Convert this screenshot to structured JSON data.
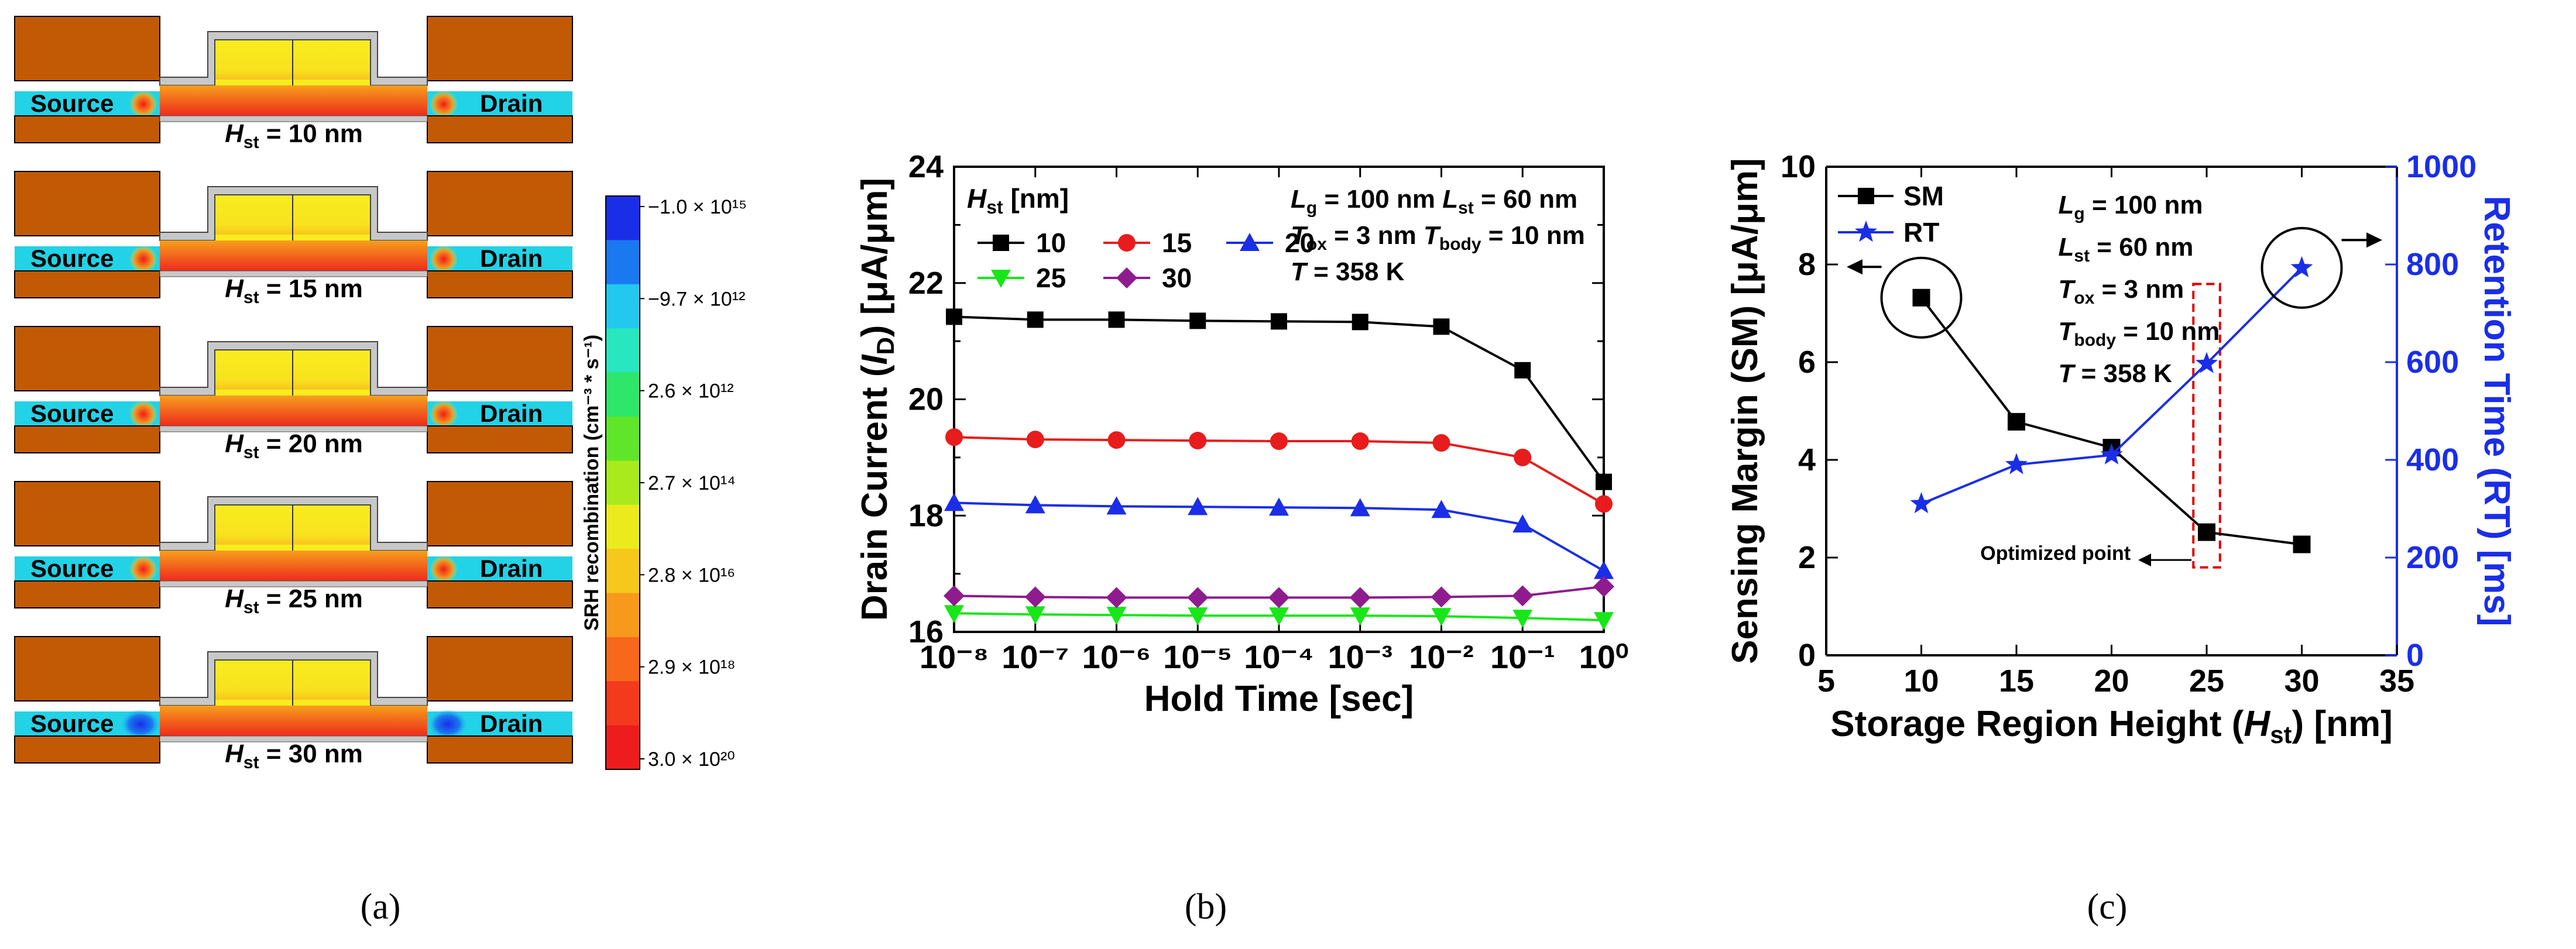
{
  "colors": {
    "electrode": "#c25a05",
    "channel_yellow": "#f7ec1c",
    "oxide_gray": "#c8c8c8",
    "sd_cyan": "#22d2e6",
    "black": "#000000",
    "red": "#e81c1c",
    "blue": "#1a2ee8",
    "green": "#19e619",
    "purple": "#8e1c8e",
    "dashed_red": "#e00000"
  },
  "panel_a": {
    "caption": "(a)",
    "colorbar_label": "SRH recombination (cm⁻³ * s⁻¹)",
    "colorbar_ticks": [
      "−1.0 × 10¹⁵",
      "−9.7 × 10¹²",
      "2.6 × 10¹²",
      "2.7 × 10¹⁴",
      "2.8 × 10¹⁶",
      "2.9 × 10¹⁸",
      "3.0 × 10²⁰"
    ],
    "colorbar_colors": [
      "#1a2ee8",
      "#1a78f0",
      "#22c8ee",
      "#28e6c0",
      "#2ee66a",
      "#5fe62a",
      "#a8ea1c",
      "#eaea1c",
      "#f7c81c",
      "#f79a1c",
      "#f7681c",
      "#f43a1c",
      "#ee1c1c"
    ],
    "devices": [
      {
        "source": "Source",
        "drain": "Drain",
        "h_label": "H",
        "h_sub": "st",
        "h_value": " = 10 nm",
        "hst": 10
      },
      {
        "source": "Source",
        "drain": "Drain",
        "h_label": "H",
        "h_sub": "st",
        "h_value": " = 15 nm",
        "hst": 15
      },
      {
        "source": "Source",
        "drain": "Drain",
        "h_label": "H",
        "h_sub": "st",
        "h_value": " = 20 nm",
        "hst": 20
      },
      {
        "source": "Source",
        "drain": "Drain",
        "h_label": "H",
        "h_sub": "st",
        "h_value": " = 25 nm",
        "hst": 25
      },
      {
        "source": "Source",
        "drain": "Drain",
        "h_label": "H",
        "h_sub": "st",
        "h_value": " = 30 nm",
        "hst": 30
      }
    ]
  },
  "panel_b_caption": "(b)",
  "panel_c_caption": "(c)",
  "chart_data": [
    {
      "type": "line",
      "title": "",
      "xlabel": "Hold Time [sec]",
      "ylabel": "Drain Current (I_D) [μA/μm]",
      "xscale": "log",
      "xlim": [
        1e-08,
        1
      ],
      "ylim": [
        16,
        24
      ],
      "x_ticks": [
        "10⁻⁸",
        "10⁻⁷",
        "10⁻⁶",
        "10⁻⁵",
        "10⁻⁴",
        "10⁻³",
        "10⁻²",
        "10⁻¹",
        "10⁰"
      ],
      "y_ticks": [
        "16",
        "18",
        "20",
        "22",
        "24"
      ],
      "legend_title": "H_st [nm]",
      "legend_title_main": "H",
      "legend_title_sub": "st",
      "legend_title_rest": " [nm]",
      "annotation": {
        "line1": [
          [
            "L",
            "g",
            " = 100 nm "
          ],
          [
            "L",
            "st",
            " = 60 nm"
          ]
        ],
        "line2": [
          [
            "T",
            "ox",
            " = 3 nm "
          ],
          [
            "T",
            "body",
            " = 10 nm"
          ]
        ],
        "line3": [
          [
            "T",
            "",
            " = 358 K"
          ]
        ]
      },
      "x": [
        1e-08,
        1e-07,
        1e-06,
        1e-05,
        0.0001,
        0.001,
        0.01,
        0.1,
        1
      ],
      "series": [
        {
          "name": "10",
          "marker": "square",
          "color": "#000000",
          "values": [
            21.42,
            21.37,
            21.37,
            21.35,
            21.34,
            21.33,
            21.25,
            20.5,
            18.58
          ]
        },
        {
          "name": "15",
          "marker": "circle",
          "color": "#e81c1c",
          "values": [
            19.35,
            19.31,
            19.3,
            19.29,
            19.28,
            19.28,
            19.25,
            19.0,
            18.2
          ]
        },
        {
          "name": "20",
          "marker": "triangle-up",
          "color": "#1a2ee8",
          "values": [
            18.22,
            18.18,
            18.16,
            18.15,
            18.14,
            18.13,
            18.1,
            17.85,
            17.05
          ]
        },
        {
          "name": "25",
          "marker": "triangle-down",
          "color": "#19e619",
          "values": [
            16.32,
            16.3,
            16.29,
            16.28,
            16.28,
            16.28,
            16.27,
            16.24,
            16.2
          ]
        },
        {
          "name": "30",
          "marker": "diamond",
          "color": "#8e1c8e",
          "values": [
            16.62,
            16.6,
            16.59,
            16.59,
            16.59,
            16.59,
            16.6,
            16.62,
            16.78
          ]
        }
      ]
    },
    {
      "type": "line",
      "title": "",
      "xlabel": "Storage Region Height (H_st) [nm]",
      "xlabel_main": "Storage Region Height (",
      "xlabel_it": "H",
      "xlabel_sub": "st",
      "xlabel_rest": ") [nm]",
      "ylabel_left": "Sensing Margin (SM) [μA/μm]",
      "ylabel_right": "Retention Time (RT) [ms]",
      "xlim": [
        5,
        35
      ],
      "ylim_left": [
        0,
        10
      ],
      "ylim_right": [
        0,
        1000
      ],
      "x_ticks": [
        "5",
        "10",
        "15",
        "20",
        "25",
        "30",
        "35"
      ],
      "y_ticks_left": [
        "0",
        "2",
        "4",
        "6",
        "8",
        "10"
      ],
      "y_ticks_right": [
        "0",
        "200",
        "400",
        "600",
        "800",
        "1000"
      ],
      "x": [
        10,
        15,
        20,
        25,
        30
      ],
      "series": [
        {
          "name": "SM",
          "axis": "left",
          "marker": "square",
          "color": "#000000",
          "values": [
            7.32,
            4.78,
            4.25,
            2.52,
            2.27
          ]
        },
        {
          "name": "RT",
          "axis": "right",
          "marker": "star",
          "color": "#1a2ee8",
          "values": [
            310,
            390,
            410,
            597,
            793
          ]
        }
      ],
      "annotation": {
        "line1": [
          "L",
          "g",
          " = 100 nm"
        ],
        "line2": [
          "L",
          "st",
          " = 60 nm"
        ],
        "line3": [
          "T",
          "ox",
          " = 3 nm"
        ],
        "line4": [
          "T",
          "body",
          " = 10 nm"
        ],
        "line5": [
          "T",
          "",
          " = 358 K"
        ]
      },
      "optimized_label": "Optimized point"
    }
  ]
}
